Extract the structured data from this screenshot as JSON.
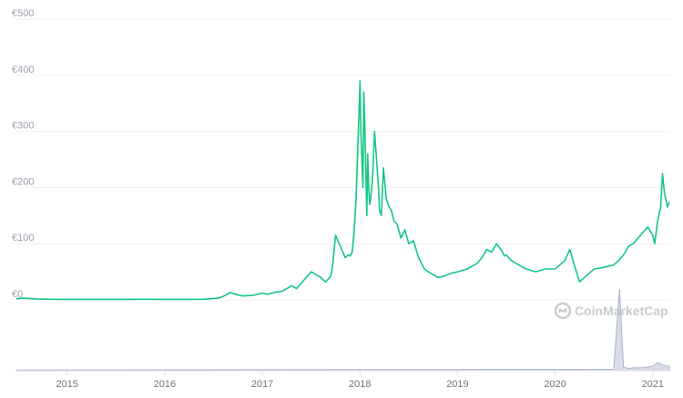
{
  "watermark": {
    "text": "CoinMarketCap",
    "icon": "coinmarketcap-logo-icon"
  },
  "colors": {
    "line": "#16c784",
    "grid": "#eef0f3",
    "volume": "#aab4cf",
    "tick": "#9ba1ad"
  },
  "chart_data": {
    "type": "line",
    "title": "",
    "xlabel": "",
    "ylabel": "",
    "currency": "€",
    "ylim": [
      0,
      500
    ],
    "xlim": [
      2014.48,
      2021.17
    ],
    "y_ticks": [
      {
        "value": 0,
        "label": "€0"
      },
      {
        "value": 100,
        "label": "€100"
      },
      {
        "value": 200,
        "label": "€200"
      },
      {
        "value": 300,
        "label": "€300"
      },
      {
        "value": 400,
        "label": "€400"
      },
      {
        "value": 500,
        "label": "€500"
      }
    ],
    "x_ticks": [
      {
        "value": 2015,
        "label": "2015"
      },
      {
        "value": 2016,
        "label": "2016"
      },
      {
        "value": 2017,
        "label": "2017"
      },
      {
        "value": 2018,
        "label": "2018"
      },
      {
        "value": 2019,
        "label": "2019"
      },
      {
        "value": 2020,
        "label": "2020"
      },
      {
        "value": 2021,
        "label": "2021"
      }
    ],
    "grid": true,
    "series": [
      {
        "x": [
          2014.48,
          2014.55,
          2014.7,
          2014.9,
          2015.2,
          2015.5,
          2015.8,
          2016.0,
          2016.2,
          2016.4,
          2016.55,
          2016.62,
          2016.67,
          2016.72,
          2016.8,
          2016.9,
          2017.0,
          2017.05,
          2017.15,
          2017.2,
          2017.3,
          2017.35,
          2017.4,
          2017.45,
          2017.5,
          2017.55,
          2017.6,
          2017.62,
          2017.65,
          2017.7,
          2017.72,
          2017.75,
          2017.8,
          2017.85,
          2017.88,
          2017.9,
          2017.92,
          2017.94,
          2017.96,
          2017.98,
          2017.99,
          2018.0,
          2018.01,
          2018.02,
          2018.03,
          2018.04,
          2018.05,
          2018.06,
          2018.07,
          2018.08,
          2018.09,
          2018.1,
          2018.11,
          2018.13,
          2018.15,
          2018.17,
          2018.19,
          2018.2,
          2018.22,
          2018.24,
          2018.27,
          2018.3,
          2018.32,
          2018.35,
          2018.38,
          2018.42,
          2018.46,
          2018.5,
          2018.55,
          2018.6,
          2018.63,
          2018.66,
          2018.7,
          2018.75,
          2018.8,
          2018.86,
          2018.9,
          2018.95,
          2019.0,
          2019.1,
          2019.2,
          2019.25,
          2019.3,
          2019.35,
          2019.4,
          2019.45,
          2019.48,
          2019.5,
          2019.55,
          2019.6,
          2019.65,
          2019.7,
          2019.8,
          2019.9,
          2020.0,
          2020.1,
          2020.15,
          2020.18,
          2020.2,
          2020.25,
          2020.3,
          2020.4,
          2020.5,
          2020.55,
          2020.6,
          2020.65,
          2020.7,
          2020.75,
          2020.8,
          2020.85,
          2020.9,
          2020.95,
          2021.0,
          2021.02,
          2021.05,
          2021.08,
          2021.1,
          2021.12,
          2021.14,
          2021.15,
          2021.17
        ],
        "y": [
          2,
          3,
          1.5,
          1,
          1,
          1,
          1.2,
          1,
          1,
          1.2,
          3,
          8,
          13,
          10,
          7,
          8,
          12,
          10,
          14,
          15,
          25,
          20,
          30,
          40,
          50,
          45,
          40,
          36,
          32,
          42,
          60,
          115,
          95,
          75,
          80,
          78,
          85,
          120,
          180,
          280,
          330,
          390,
          300,
          250,
          200,
          370,
          310,
          230,
          150,
          260,
          200,
          170,
          180,
          220,
          300,
          250,
          200,
          160,
          150,
          235,
          180,
          165,
          160,
          140,
          135,
          110,
          125,
          100,
          105,
          75,
          65,
          55,
          50,
          45,
          40,
          42,
          45,
          48,
          50,
          55,
          65,
          75,
          90,
          85,
          100,
          88,
          78,
          80,
          70,
          65,
          60,
          55,
          50,
          55,
          55,
          70,
          90,
          72,
          60,
          32,
          40,
          55,
          58,
          60,
          62,
          70,
          80,
          95,
          100,
          110,
          120,
          130,
          115,
          100,
          140,
          165,
          225,
          190,
          175,
          165,
          175
        ],
        "color": "#16c784"
      }
    ],
    "volume": {
      "x": [
        2014.48,
        2020.6,
        2020.66,
        2020.7,
        2020.75,
        2020.8,
        2020.9,
        2021.0,
        2021.05,
        2021.1,
        2021.17
      ],
      "y": [
        0.05,
        0.1,
        5.5,
        0.25,
        0.15,
        0.2,
        0.2,
        0.3,
        0.55,
        0.4,
        0.3
      ]
    }
  }
}
